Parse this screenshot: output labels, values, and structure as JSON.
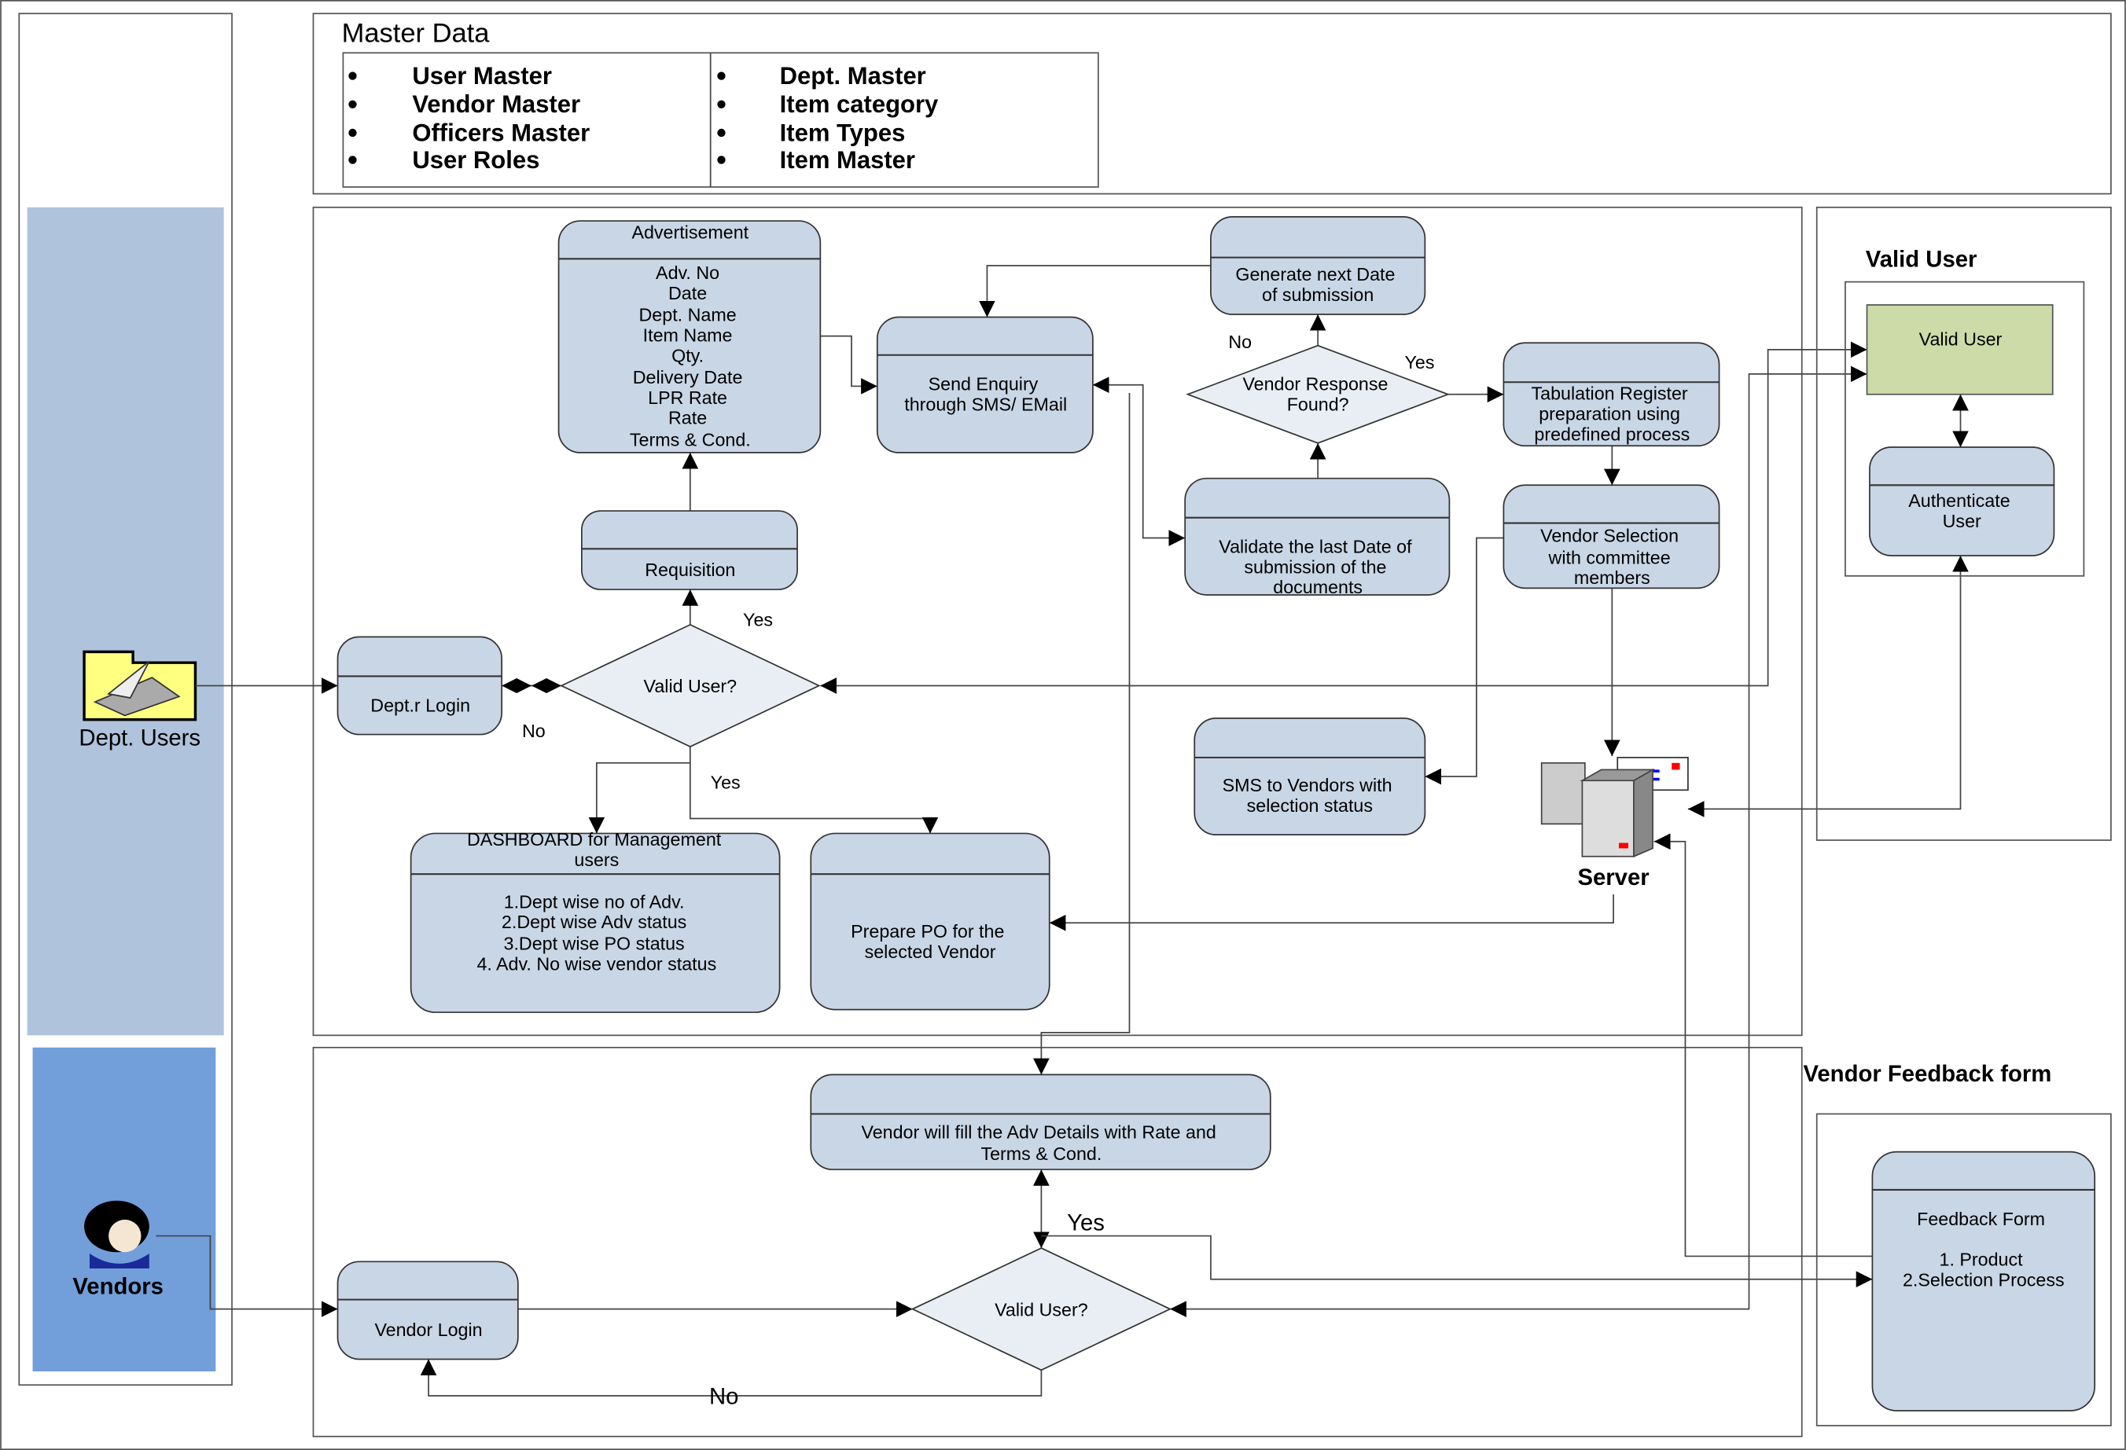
{
  "master_data": {
    "title": "Master Data",
    "left_items": [
      "User Master",
      "Vendor Master",
      "Officers Master",
      "User Roles"
    ],
    "right_items": [
      "Dept. Master",
      "Item category",
      "Item Types",
      "Item Master"
    ]
  },
  "lanes": {
    "dept_users": {
      "label": "Dept. Users",
      "color": "#afc3dc",
      "icon": "folder-scanner-icon"
    },
    "vendors": {
      "label": "Vendors",
      "color": "#729fda",
      "icon": "person-avatar-icon"
    }
  },
  "nodes": {
    "advertisement": {
      "title": "Advertisement",
      "lines": [
        "Adv. No",
        "Date",
        "Dept. Name",
        "Item Name",
        "Qty.",
        "Delivery Date",
        "LPR Rate",
        "Rate",
        "Terms & Cond."
      ]
    },
    "send_enquiry": {
      "lines": [
        "Send Enquiry",
        "through SMS/ EMail"
      ]
    },
    "generate_next": {
      "lines": [
        "Generate next  Date",
        "of submission"
      ]
    },
    "vendor_response": {
      "lines": [
        "Vendor Response",
        "Found?"
      ]
    },
    "tabulation": {
      "lines": [
        "Tabulation Register",
        "preparation using",
        "predefined process"
      ]
    },
    "validate_last": {
      "lines": [
        "Validate the last  Date of",
        "submission of the",
        "documents"
      ]
    },
    "vendor_selection": {
      "lines": [
        "Vendor Selection",
        "with committee",
        "members"
      ]
    },
    "requisition": {
      "lines": [
        "Requisition"
      ]
    },
    "dept_login": {
      "lines": [
        "Dept.r Login"
      ]
    },
    "valid_user_dept": {
      "lines": [
        "Valid User?"
      ]
    },
    "sms_vendors": {
      "lines": [
        "SMS to Vendors with",
        "selection  status"
      ]
    },
    "dashboard": {
      "title_lines": [
        "DASHBOARD for Management",
        "users"
      ],
      "lines": [
        "1.Dept wise no of Adv.",
        "2.Dept wise Adv status",
        "3.Dept wise PO status",
        "4. Adv. No wise vendor status"
      ]
    },
    "prepare_po": {
      "lines": [
        "Prepare PO for the",
        "selected Vendor"
      ]
    },
    "server": {
      "label": "Server"
    },
    "vendor_fill": {
      "lines": [
        "Vendor will fill the Adv Details with Rate and",
        "Terms & Cond."
      ]
    },
    "vendor_login": {
      "lines": [
        "Vendor Login"
      ]
    },
    "valid_user_vendor": {
      "lines": [
        "Valid User?"
      ]
    },
    "feedback": {
      "lines": [
        "Feedback Form",
        "1. Product",
        "2.Selection Process"
      ]
    }
  },
  "valid_user_panel": {
    "title": "Valid User",
    "valid_user": "Valid User",
    "valid_user_color": "#cddba8",
    "authenticate": [
      "Authenticate",
      "User"
    ]
  },
  "vendor_feedback_panel": {
    "title": "Vendor Feedback form"
  },
  "edge_labels": {
    "response_no": "No",
    "response_yes": "Yes",
    "dept_valid_yes_top": "Yes",
    "dept_valid_no": "No",
    "dept_valid_yes_bottom": "Yes",
    "vendor_valid_yes": "Yes",
    "vendor_valid_no": "No"
  }
}
